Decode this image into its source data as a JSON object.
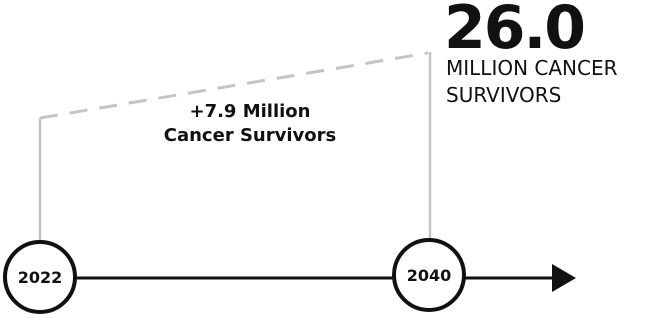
{
  "headline": {
    "value": "26.0",
    "caption_line1": "MILLION CANCER",
    "caption_line2": "SURVIVORS"
  },
  "increase": {
    "line1": "+7.9 Million",
    "line2": "Cancer Survivors"
  },
  "timeline": {
    "start_year": "2022",
    "end_year": "2040"
  },
  "colors": {
    "text": "#111111",
    "guide_line": "#c4c4c4",
    "dashed_line": "#c4c4c4",
    "axis": "#111111"
  }
}
